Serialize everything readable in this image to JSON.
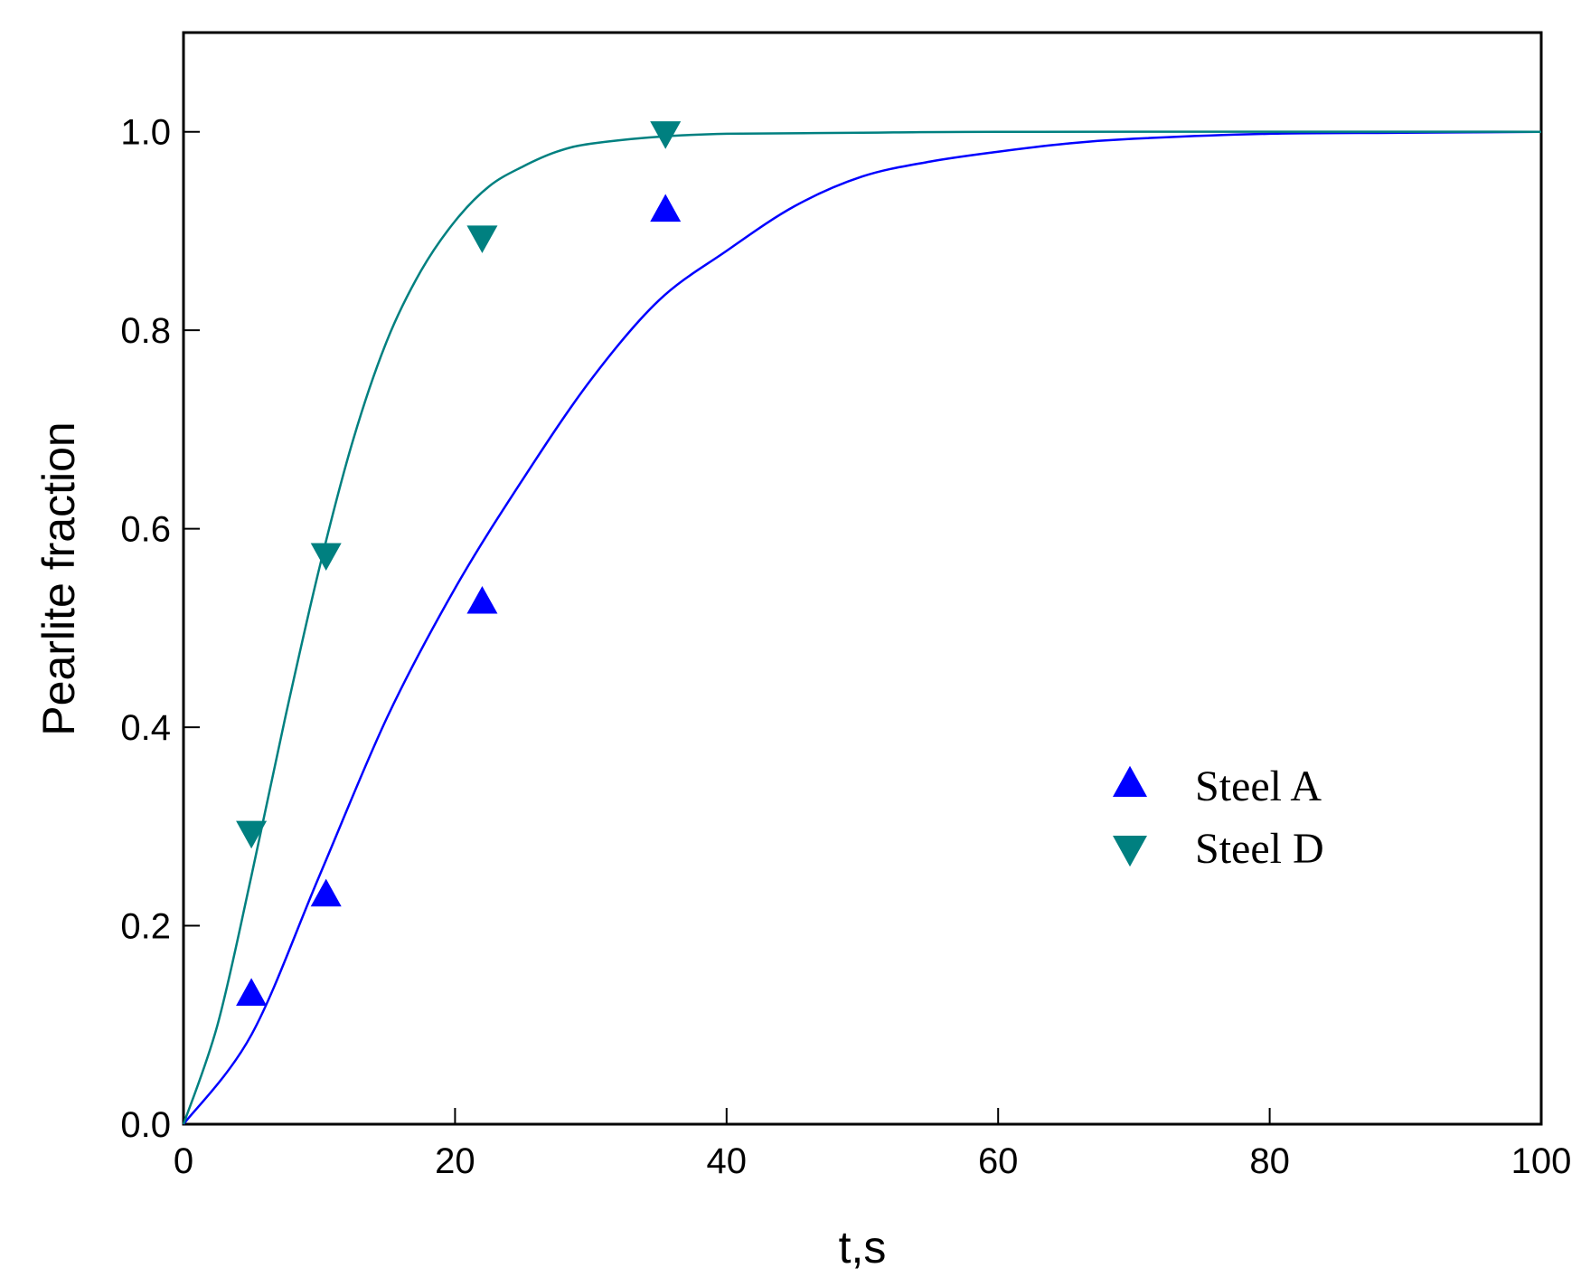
{
  "chart_data": {
    "type": "scatter",
    "title": "",
    "xlabel": "t,s",
    "ylabel": "Pearlite fraction",
    "xlim": [
      0,
      100
    ],
    "ylim": [
      0,
      1.1
    ],
    "xticks": [
      0,
      20,
      40,
      60,
      80,
      100
    ],
    "xtick_labels": [
      "0",
      "20",
      "40",
      "60",
      "80",
      "100"
    ],
    "yticks": [
      0.0,
      0.2,
      0.4,
      0.6,
      0.8,
      1.0
    ],
    "ytick_labels": [
      "0.0",
      "0.2",
      "0.4",
      "0.6",
      "0.8",
      "1.0"
    ],
    "grid": false,
    "legend_position": "lower-right",
    "series": [
      {
        "name": "Steel A",
        "marker": "triangle-up",
        "color": "#0000ff",
        "points": [
          [
            5,
            0.13
          ],
          [
            10.5,
            0.23
          ],
          [
            22,
            0.525
          ],
          [
            35.5,
            0.92
          ]
        ],
        "fit_curve": {
          "x": [
            0,
            5,
            10,
            15,
            20,
            25,
            30,
            35,
            40,
            45,
            50,
            55,
            60,
            65,
            70,
            80,
            90,
            100
          ],
          "y": [
            0,
            0.09,
            0.25,
            0.41,
            0.54,
            0.65,
            0.75,
            0.83,
            0.88,
            0.925,
            0.955,
            0.97,
            0.98,
            0.988,
            0.993,
            0.998,
            0.999,
            1.0
          ]
        }
      },
      {
        "name": "Steel D",
        "marker": "triangle-down",
        "color": "#008080",
        "points": [
          [
            5,
            0.295
          ],
          [
            10.5,
            0.575
          ],
          [
            22,
            0.895
          ],
          [
            35.5,
            1.0
          ]
        ],
        "fit_curve": {
          "x": [
            0,
            2.5,
            5,
            7.5,
            10,
            12.5,
            15,
            17.5,
            20,
            22.5,
            25,
            27.5,
            30,
            35,
            40,
            50,
            60,
            100
          ],
          "y": [
            0,
            0.1,
            0.25,
            0.41,
            0.56,
            0.69,
            0.79,
            0.86,
            0.91,
            0.945,
            0.965,
            0.98,
            0.988,
            0.995,
            0.998,
            0.999,
            1.0,
            1.0
          ]
        }
      }
    ]
  }
}
